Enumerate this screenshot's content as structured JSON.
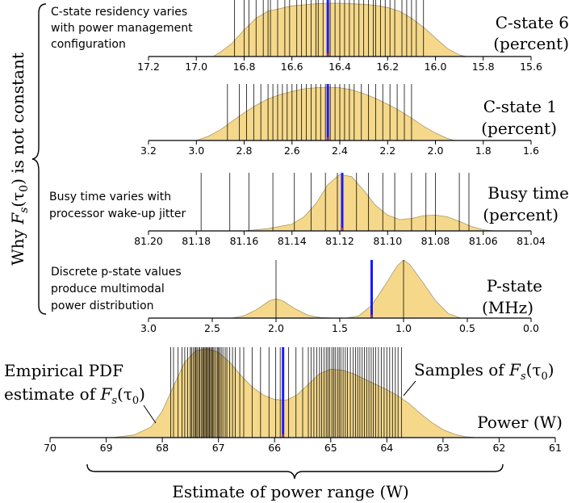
{
  "chart_data": [
    {
      "type": "density-rug",
      "name": "c-state-6",
      "title_line1": "C-state 6",
      "title_line2": "(percent)",
      "annotation_lines": [
        "C-state residency varies",
        "with power management",
        "configuration"
      ],
      "xlim": [
        17.2,
        15.6
      ],
      "tick_values": [
        17.2,
        17.0,
        16.8,
        16.6,
        16.4,
        16.2,
        16.0,
        15.8,
        15.6
      ],
      "tick_labels": [
        "17.2",
        "17.0",
        "16.8",
        "16.6",
        "16.4",
        "16.2",
        "16.0",
        "15.8",
        "15.6"
      ],
      "mean": 16.45,
      "density": [
        [
          16.93,
          0.0
        ],
        [
          16.9,
          0.08
        ],
        [
          16.85,
          0.25
        ],
        [
          16.8,
          0.5
        ],
        [
          16.75,
          0.72
        ],
        [
          16.7,
          0.85
        ],
        [
          16.65,
          0.9
        ],
        [
          16.6,
          0.95
        ],
        [
          16.55,
          0.97
        ],
        [
          16.5,
          0.99
        ],
        [
          16.45,
          1.0
        ],
        [
          16.4,
          1.0
        ],
        [
          16.35,
          0.99
        ],
        [
          16.3,
          0.98
        ],
        [
          16.25,
          0.96
        ],
        [
          16.2,
          0.92
        ],
        [
          16.15,
          0.85
        ],
        [
          16.1,
          0.72
        ],
        [
          16.05,
          0.55
        ],
        [
          16.0,
          0.35
        ],
        [
          15.95,
          0.15
        ],
        [
          15.9,
          0.03
        ],
        [
          15.87,
          0.0
        ]
      ],
      "samples": [
        16.84,
        16.8,
        16.78,
        16.75,
        16.72,
        16.7,
        16.69,
        16.66,
        16.63,
        16.61,
        16.58,
        16.56,
        16.54,
        16.52,
        16.5,
        16.49,
        16.47,
        16.44,
        16.42,
        16.4,
        16.38,
        16.36,
        16.34,
        16.32,
        16.3,
        16.28,
        16.26,
        16.25,
        16.23,
        16.21,
        16.19,
        16.17,
        16.14,
        16.12,
        16.1,
        16.08,
        16.05
      ]
    },
    {
      "type": "density-rug",
      "name": "c-state-1",
      "title_line1": "C-state 1",
      "title_line2": "(percent)",
      "xlim": [
        3.2,
        1.6
      ],
      "tick_values": [
        3.2,
        3.0,
        2.8,
        2.6,
        2.4,
        2.2,
        2.0,
        1.8,
        1.6
      ],
      "tick_labels": [
        "3.2",
        "3.0",
        "2.8",
        "2.6",
        "2.4",
        "2.2",
        "2.0",
        "1.8",
        "1.6"
      ],
      "mean": 2.45,
      "density": [
        [
          3.0,
          0.0
        ],
        [
          2.95,
          0.08
        ],
        [
          2.9,
          0.2
        ],
        [
          2.85,
          0.36
        ],
        [
          2.8,
          0.52
        ],
        [
          2.75,
          0.66
        ],
        [
          2.7,
          0.78
        ],
        [
          2.65,
          0.86
        ],
        [
          2.6,
          0.92
        ],
        [
          2.55,
          0.97
        ],
        [
          2.5,
          0.99
        ],
        [
          2.45,
          1.0
        ],
        [
          2.4,
          0.99
        ],
        [
          2.35,
          0.95
        ],
        [
          2.3,
          0.88
        ],
        [
          2.25,
          0.79
        ],
        [
          2.2,
          0.68
        ],
        [
          2.15,
          0.56
        ],
        [
          2.1,
          0.42
        ],
        [
          2.05,
          0.27
        ],
        [
          2.0,
          0.14
        ],
        [
          1.95,
          0.04
        ],
        [
          1.92,
          0.0
        ]
      ],
      "samples": [
        2.87,
        2.82,
        2.79,
        2.76,
        2.73,
        2.7,
        2.68,
        2.66,
        2.64,
        2.62,
        2.6,
        2.58,
        2.56,
        2.54,
        2.52,
        2.5,
        2.48,
        2.46,
        2.44,
        2.42,
        2.4,
        2.38,
        2.36,
        2.34,
        2.31,
        2.28,
        2.25,
        2.22,
        2.19,
        2.16,
        2.13,
        2.1
      ]
    },
    {
      "type": "density-rug",
      "name": "busy-time",
      "title_line1": "Busy time",
      "title_line2": "(percent)",
      "annotation_lines": [
        "Busy time varies with",
        "processor wake-up jitter"
      ],
      "xlim": [
        81.2,
        81.04
      ],
      "tick_values": [
        81.2,
        81.18,
        81.16,
        81.14,
        81.12,
        81.1,
        81.08,
        81.06,
        81.04
      ],
      "tick_labels": [
        "81.20",
        "81.18",
        "81.16",
        "81.14",
        "81.12",
        "81.10",
        "81.08",
        "81.06",
        "81.04"
      ],
      "mean": 81.119,
      "density": [
        [
          81.16,
          0.0
        ],
        [
          81.15,
          0.04
        ],
        [
          81.14,
          0.12
        ],
        [
          81.135,
          0.25
        ],
        [
          81.13,
          0.48
        ],
        [
          81.125,
          0.82
        ],
        [
          81.12,
          1.0
        ],
        [
          81.115,
          0.96
        ],
        [
          81.11,
          0.72
        ],
        [
          81.105,
          0.45
        ],
        [
          81.1,
          0.28
        ],
        [
          81.095,
          0.2
        ],
        [
          81.09,
          0.22
        ],
        [
          81.085,
          0.27
        ],
        [
          81.08,
          0.28
        ],
        [
          81.075,
          0.25
        ],
        [
          81.07,
          0.17
        ],
        [
          81.065,
          0.08
        ],
        [
          81.06,
          0.02
        ],
        [
          81.055,
          0.0
        ]
      ],
      "samples": [
        81.178,
        81.166,
        81.158,
        81.148,
        81.139,
        81.132,
        81.126,
        81.121,
        81.113,
        81.108,
        81.102,
        81.097,
        81.09,
        81.084,
        81.08,
        81.07,
        81.066
      ]
    },
    {
      "type": "density-rug",
      "name": "p-state",
      "title_line1": "P-state",
      "title_line2": "(MHz)",
      "annotation_lines": [
        "Discrete p-state values",
        "produce multimodal",
        "power distribution"
      ],
      "xlim": [
        3.0,
        0.0
      ],
      "tick_values": [
        3.0,
        2.5,
        2.0,
        1.5,
        1.0,
        0.5,
        0.0
      ],
      "tick_labels": [
        "3.0",
        "2.5",
        "2.0",
        "1.5",
        "1.0",
        "0.5",
        "0.0"
      ],
      "mean": 1.25,
      "density": [
        [
          2.35,
          0.0
        ],
        [
          2.25,
          0.04
        ],
        [
          2.15,
          0.15
        ],
        [
          2.05,
          0.3
        ],
        [
          2.0,
          0.33
        ],
        [
          1.95,
          0.3
        ],
        [
          1.85,
          0.16
        ],
        [
          1.75,
          0.05
        ],
        [
          1.65,
          0.01
        ],
        [
          1.55,
          0.0
        ],
        [
          1.45,
          0.0
        ],
        [
          1.35,
          0.04
        ],
        [
          1.25,
          0.22
        ],
        [
          1.15,
          0.55
        ],
        [
          1.05,
          0.9
        ],
        [
          1.0,
          1.0
        ],
        [
          0.95,
          0.92
        ],
        [
          0.85,
          0.62
        ],
        [
          0.75,
          0.3
        ],
        [
          0.65,
          0.08
        ],
        [
          0.55,
          0.0
        ]
      ],
      "samples": [
        2.0,
        1.0
      ]
    },
    {
      "type": "density-rug",
      "name": "power",
      "title_line1": "Power (W)",
      "xlim": [
        70,
        61
      ],
      "tick_values": [
        70,
        69,
        68,
        67,
        66,
        65,
        64,
        63,
        62,
        61
      ],
      "tick_labels": [
        "70",
        "69",
        "68",
        "67",
        "66",
        "65",
        "64",
        "63",
        "62",
        "61"
      ],
      "mean": 65.85,
      "density": [
        [
          68.9,
          0.0
        ],
        [
          68.5,
          0.03
        ],
        [
          68.2,
          0.12
        ],
        [
          68.0,
          0.3
        ],
        [
          67.8,
          0.58
        ],
        [
          67.6,
          0.85
        ],
        [
          67.4,
          0.98
        ],
        [
          67.2,
          1.0
        ],
        [
          67.0,
          0.96
        ],
        [
          66.8,
          0.85
        ],
        [
          66.6,
          0.7
        ],
        [
          66.4,
          0.57
        ],
        [
          66.2,
          0.48
        ],
        [
          66.0,
          0.43
        ],
        [
          65.8,
          0.42
        ],
        [
          65.6,
          0.48
        ],
        [
          65.4,
          0.6
        ],
        [
          65.2,
          0.72
        ],
        [
          65.0,
          0.77
        ],
        [
          64.8,
          0.76
        ],
        [
          64.6,
          0.72
        ],
        [
          64.4,
          0.66
        ],
        [
          64.2,
          0.6
        ],
        [
          64.0,
          0.54
        ],
        [
          63.8,
          0.47
        ],
        [
          63.6,
          0.38
        ],
        [
          63.4,
          0.27
        ],
        [
          63.2,
          0.17
        ],
        [
          63.0,
          0.09
        ],
        [
          62.8,
          0.04
        ],
        [
          62.6,
          0.01
        ],
        [
          62.4,
          0.0
        ]
      ],
      "samples": [
        67.85,
        67.8,
        67.72,
        67.65,
        67.6,
        67.55,
        67.5,
        67.48,
        67.45,
        67.42,
        67.4,
        67.38,
        67.35,
        67.33,
        67.3,
        67.28,
        67.26,
        67.24,
        67.22,
        67.2,
        67.18,
        67.16,
        67.14,
        67.12,
        67.1,
        67.08,
        67.05,
        67.02,
        67.0,
        66.98,
        66.95,
        66.92,
        66.88,
        66.85,
        66.8,
        66.75,
        66.7,
        66.62,
        66.55,
        66.4,
        66.25,
        66.1,
        65.98,
        65.9,
        65.75,
        65.62,
        65.5,
        65.4,
        65.35,
        65.3,
        65.25,
        65.2,
        65.16,
        65.12,
        65.08,
        65.05,
        65.02,
        64.98,
        64.95,
        64.92,
        64.88,
        64.85,
        64.82,
        64.78,
        64.74,
        64.7,
        64.65,
        64.6,
        64.56,
        64.52,
        64.48,
        64.44,
        64.4,
        64.36,
        64.32,
        64.28,
        64.24,
        64.2,
        64.15,
        64.1,
        64.05,
        64.0,
        63.95,
        63.9,
        63.85,
        63.8,
        63.74
      ]
    }
  ],
  "labels": {
    "ylabel_pre": "Why ",
    "ylabel_fhat": "F",
    "ylabel_post": "(τ",
    "ylabel_sub0": "0",
    "ylabel_tail": ") is not constant",
    "empirical_line1": "Empirical PDF",
    "empirical_line2_pre": "estimate of ",
    "samples_label_pre": "Samples of ",
    "fhat_F": "F",
    "fhat_s": "s",
    "fhat_tau": "(τ",
    "fhat_zero": "0",
    "fhat_close": ")",
    "range_label": "Estimate of power range (W)"
  },
  "colors": {
    "fill": "#f5d889",
    "fill_edge": "#9a9a9a",
    "rug": "#000000",
    "mean_line": "#1a1aff",
    "mean_marker": "#ff3300"
  }
}
